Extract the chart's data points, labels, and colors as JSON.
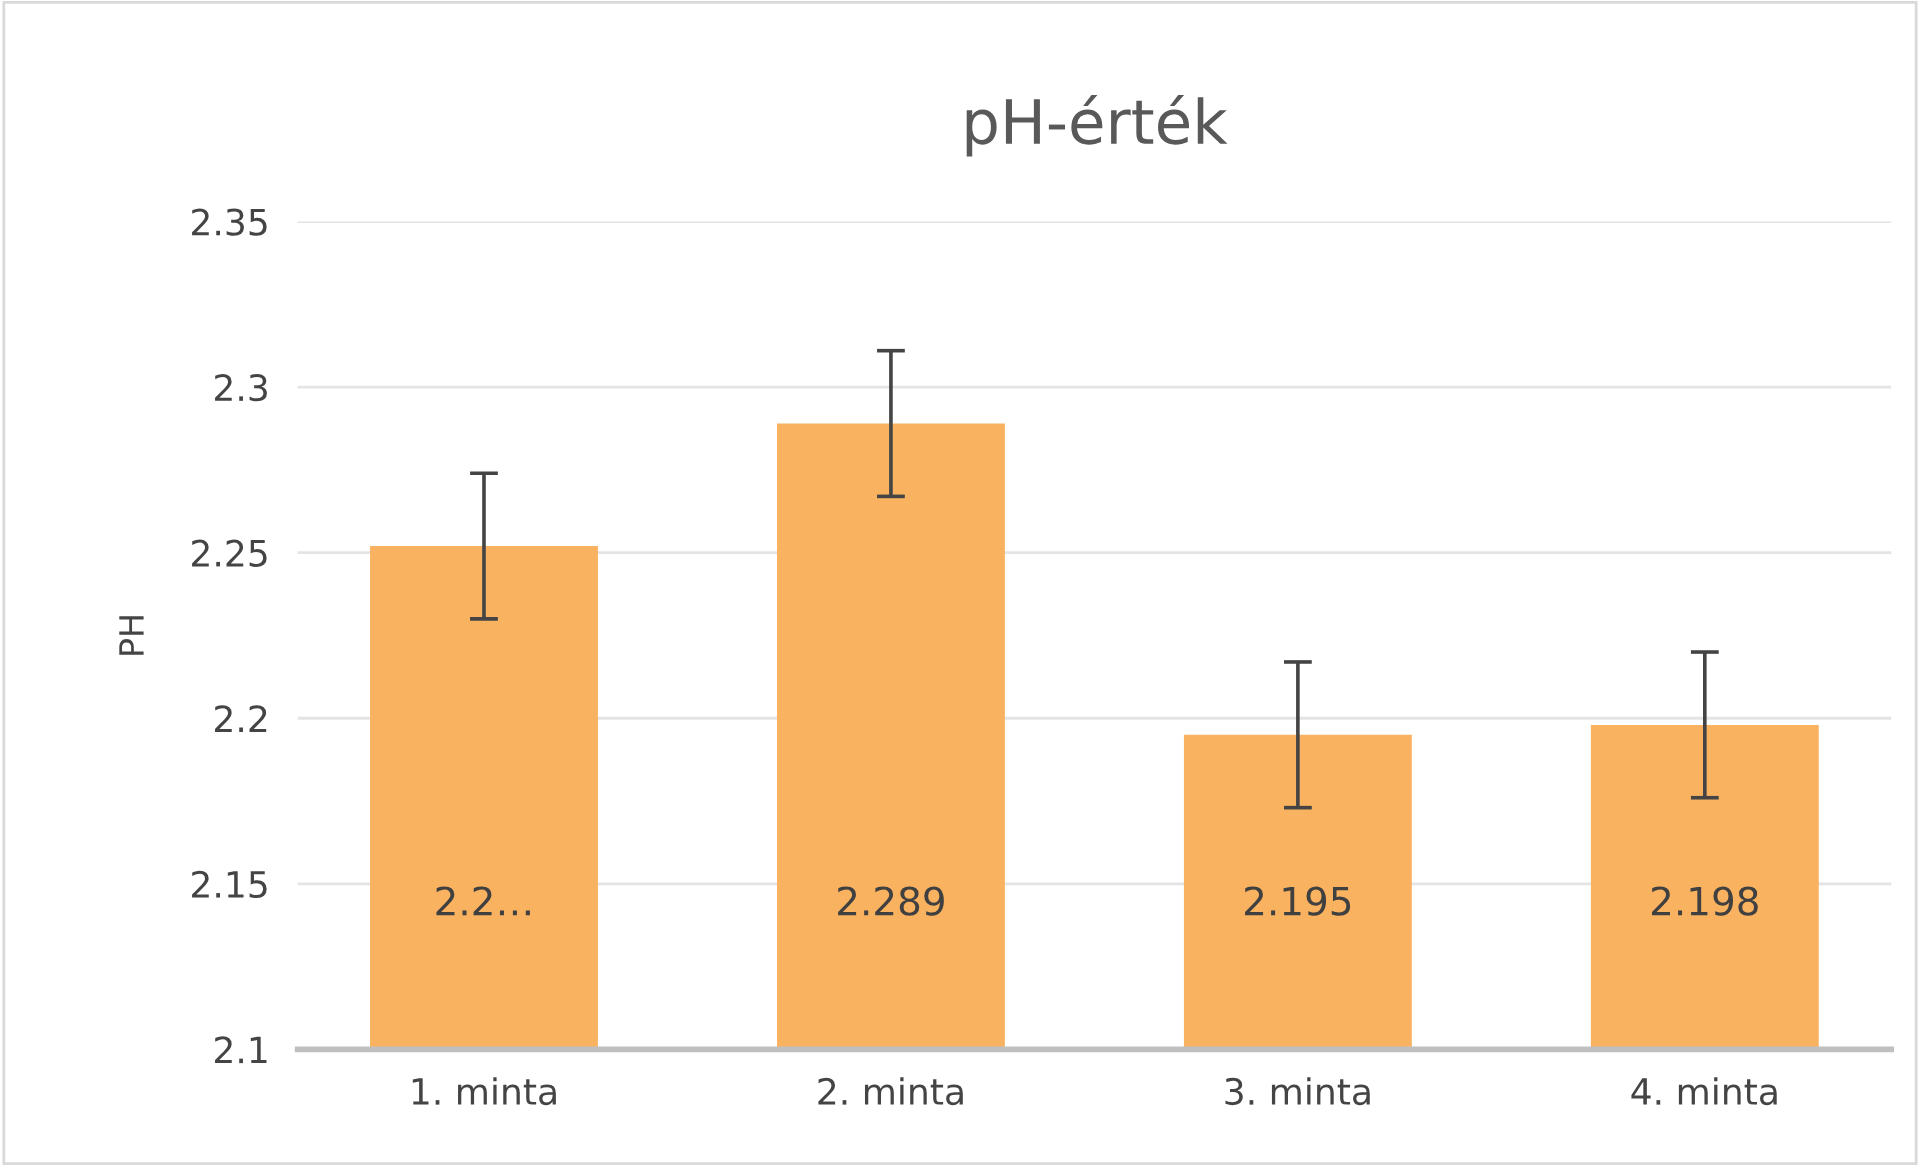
{
  "chart_data": {
    "type": "bar",
    "title": "pH-érték",
    "ylabel": "PH",
    "categories": [
      "1. minta",
      "2. minta",
      "3. minta",
      "4. minta"
    ],
    "values": [
      2.252,
      2.289,
      2.195,
      2.198
    ],
    "errors": [
      0.022,
      0.022,
      0.022,
      0.022
    ],
    "value_labels": [
      "2.2…",
      "2.289",
      "2.195",
      "2.198"
    ],
    "color": "#f8b260",
    "ylim": [
      2.1,
      2.35
    ],
    "yticks": [
      2.1,
      2.15,
      2.2,
      2.25,
      2.3,
      2.35
    ],
    "grid": "y"
  }
}
